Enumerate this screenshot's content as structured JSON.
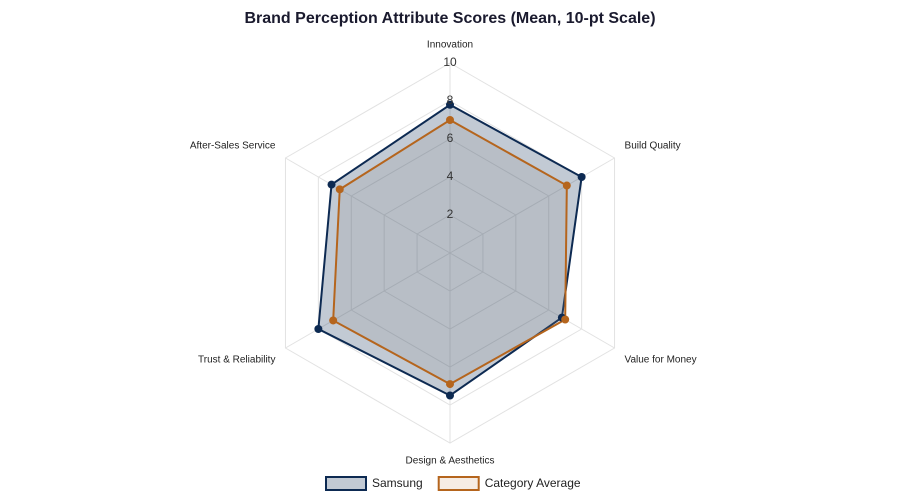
{
  "chart_data": {
    "type": "radar",
    "title": "Brand Perception Attribute Scores (Mean, 10-pt Scale)",
    "categories": [
      "Innovation",
      "Build Quality",
      "Value for Money",
      "Design & Aesthetics",
      "Trust & Reliability",
      "After-Sales Service"
    ],
    "series": [
      {
        "name": "Samsung",
        "color": "#0d2a52",
        "values": [
          7.8,
          8.0,
          6.8,
          7.5,
          8.0,
          7.2
        ]
      },
      {
        "name": "Category Average",
        "color": "#b5651d",
        "values": [
          7.0,
          7.1,
          7.0,
          6.9,
          7.1,
          6.7
        ]
      }
    ],
    "ylim": [
      0,
      10
    ],
    "yticks": [
      2,
      4,
      6,
      8,
      10
    ],
    "grid": true
  }
}
